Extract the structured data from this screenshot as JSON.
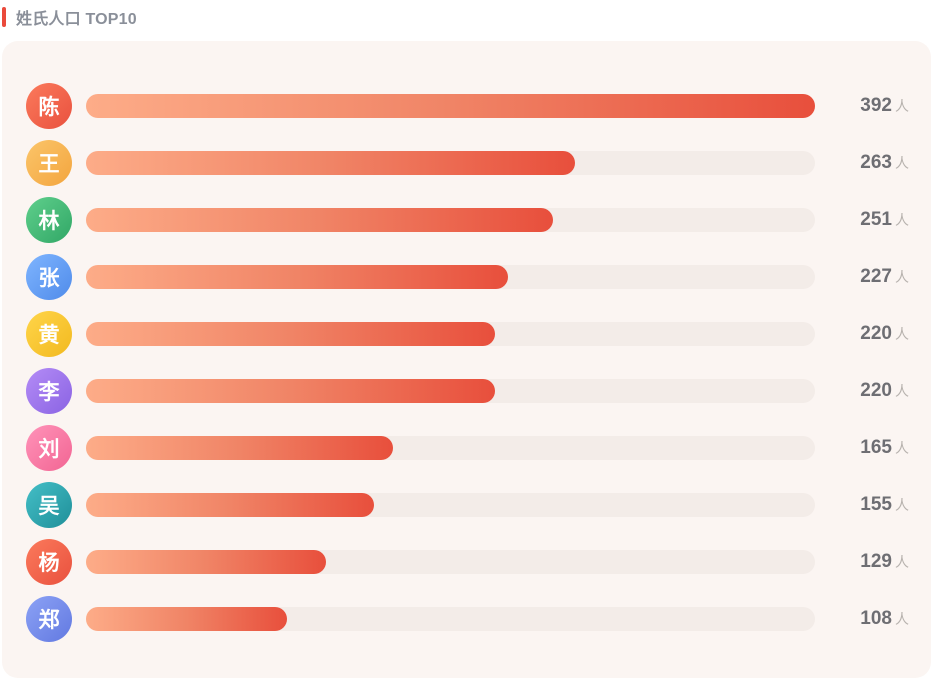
{
  "header": {
    "title": "姓氏人口 TOP10",
    "accent_color": "#ea4a3b"
  },
  "chart_data": {
    "type": "bar",
    "orientation": "horizontal",
    "categories": [
      "陈",
      "王",
      "林",
      "张",
      "黄",
      "李",
      "刘",
      "吴",
      "杨",
      "郑"
    ],
    "values": [
      392,
      263,
      251,
      227,
      220,
      220,
      165,
      155,
      129,
      108
    ],
    "unit": "人",
    "xlim": [
      0,
      392
    ],
    "bar_gradient": [
      "#fdac88",
      "#e84f3c"
    ],
    "track_color": "#f3ece8",
    "avatar_colors": [
      [
        "#fb7a5c",
        "#e9513e"
      ],
      [
        "#fbc56a",
        "#f3a53e"
      ],
      [
        "#5fcf8c",
        "#31a766"
      ],
      [
        "#7fb5ff",
        "#4f8bea"
      ],
      [
        "#ffd54a",
        "#f2b91f"
      ],
      [
        "#b48cf6",
        "#8a63e3"
      ],
      [
        "#ff93b9",
        "#f26593"
      ],
      [
        "#44bfc7",
        "#1f8f99"
      ],
      [
        "#fb7a5c",
        "#e9513e"
      ],
      [
        "#8ca2f5",
        "#6279e1"
      ]
    ]
  }
}
